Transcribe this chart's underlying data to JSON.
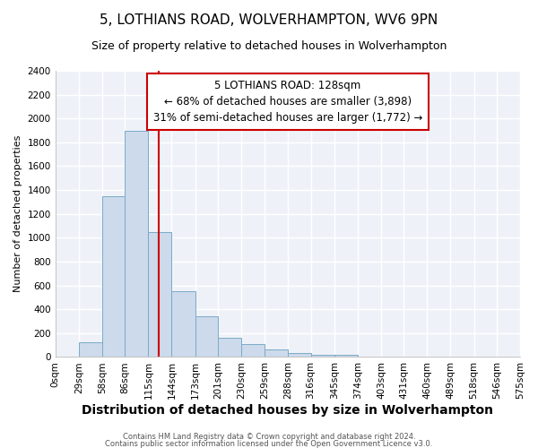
{
  "title": "5, LOTHIANS ROAD, WOLVERHAMPTON, WV6 9PN",
  "subtitle": "Size of property relative to detached houses in Wolverhampton",
  "xlabel": "Distribution of detached houses by size in Wolverhampton",
  "ylabel": "Number of detached properties",
  "bin_edges": [
    0,
    29,
    58,
    86,
    115,
    144,
    173,
    201,
    230,
    259,
    288,
    316,
    345,
    374,
    403,
    431,
    460,
    489,
    518,
    546,
    575
  ],
  "bin_labels": [
    "0sqm",
    "29sqm",
    "58sqm",
    "86sqm",
    "115sqm",
    "144sqm",
    "173sqm",
    "201sqm",
    "230sqm",
    "259sqm",
    "288sqm",
    "316sqm",
    "345sqm",
    "374sqm",
    "403sqm",
    "431sqm",
    "460sqm",
    "489sqm",
    "518sqm",
    "546sqm",
    "575sqm"
  ],
  "bar_heights": [
    0,
    120,
    1350,
    1900,
    1050,
    550,
    340,
    160,
    110,
    60,
    30,
    20,
    15,
    5,
    3,
    2,
    1,
    1,
    1,
    1
  ],
  "bar_color": "#ccdaeb",
  "bar_edge_color": "#7aaac8",
  "vline_x": 128,
  "vline_color": "#cc0000",
  "ylim": [
    0,
    2400
  ],
  "yticks": [
    0,
    200,
    400,
    600,
    800,
    1000,
    1200,
    1400,
    1600,
    1800,
    2000,
    2200,
    2400
  ],
  "annotation_title": "5 LOTHIANS ROAD: 128sqm",
  "annotation_line1": "← 68% of detached houses are smaller (3,898)",
  "annotation_line2": "31% of semi-detached houses are larger (1,772) →",
  "annotation_box_facecolor": "#ffffff",
  "annotation_box_edgecolor": "#cc0000",
  "fig_background": "#ffffff",
  "plot_background": "#eef2f8",
  "grid_color": "#ffffff",
  "footer_line1": "Contains HM Land Registry data © Crown copyright and database right 2024.",
  "footer_line2": "Contains public sector information licensed under the Open Government Licence v3.0.",
  "title_fontsize": 11,
  "subtitle_fontsize": 9,
  "xlabel_fontsize": 10,
  "ylabel_fontsize": 8,
  "tick_fontsize": 7.5,
  "ann_fontsize": 8.5
}
